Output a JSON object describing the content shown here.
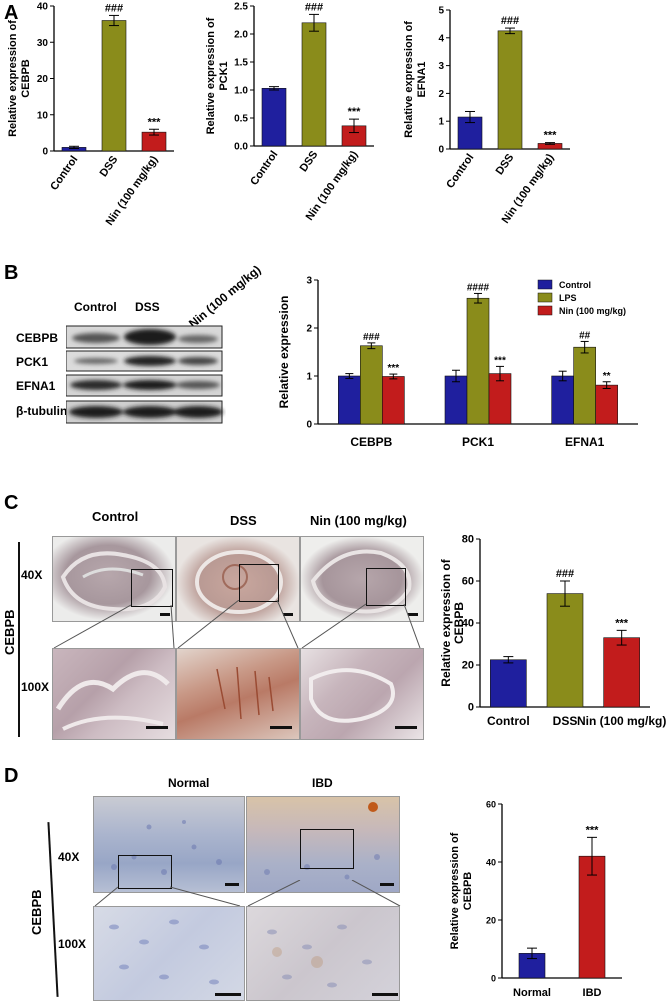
{
  "panels": {
    "A": "A",
    "B": "B",
    "C": "C",
    "D": "D"
  },
  "blot": {
    "lanes": [
      "Control",
      "DSS",
      "Nin (100 mg/kg)"
    ],
    "proteins": [
      "CEBPB",
      "PCK1",
      "EFNA1",
      "β-tubulin"
    ]
  },
  "micro_C": {
    "columns": [
      "Control",
      "DSS",
      "Nin (100 mg/kg)"
    ],
    "mag_low": "40X",
    "mag_high": "100X",
    "stain": "CEBPB"
  },
  "micro_D": {
    "columns": [
      "Normal",
      "IBD"
    ],
    "mag_low": "40X",
    "mag_high": "100X",
    "stain": "CEBPB"
  },
  "colors": {
    "control": "#1f1f9e",
    "dss": "#8a8c1b",
    "nin": "#c21c1c",
    "ibd": "#c21c1c"
  },
  "chart_data": [
    {
      "id": "A1",
      "type": "bar",
      "categories": [
        "Control",
        "DSS",
        "Nin (100 mg/kg)"
      ],
      "values": [
        1.0,
        36.0,
        5.2
      ],
      "errors": [
        0.3,
        1.4,
        0.8
      ],
      "annotations": [
        "",
        "###",
        "***"
      ],
      "ylabel": "Relative expression  of CEBPB",
      "ylim": [
        0,
        40
      ],
      "yticks": [
        0,
        10,
        20,
        30,
        40
      ]
    },
    {
      "id": "A2",
      "type": "bar",
      "categories": [
        "Control",
        "DSS",
        "Nin (100 mg/kg)"
      ],
      "values": [
        1.03,
        2.2,
        0.36
      ],
      "errors": [
        0.03,
        0.15,
        0.12
      ],
      "annotations": [
        "",
        "###",
        "***"
      ],
      "ylabel": "Relative expression of PCK1",
      "ylim": [
        0,
        2.5
      ],
      "yticks": [
        0.0,
        0.5,
        1.0,
        1.5,
        2.0,
        2.5
      ]
    },
    {
      "id": "A3",
      "type": "bar",
      "categories": [
        "Control",
        "DSS",
        "Nin (100 mg/kg)"
      ],
      "values": [
        1.15,
        4.25,
        0.2
      ],
      "errors": [
        0.2,
        0.1,
        0.03
      ],
      "annotations": [
        "",
        "###",
        "***"
      ],
      "ylabel": "Relative expression of EFNA1",
      "ylim": [
        0,
        5
      ],
      "yticks": [
        0,
        1,
        2,
        3,
        4,
        5
      ]
    },
    {
      "id": "B",
      "type": "bar",
      "categories": [
        "CEBPB",
        "PCK1",
        "EFNA1"
      ],
      "series": [
        {
          "name": "Control",
          "values": [
            1.0,
            1.0,
            1.0
          ],
          "errors": [
            0.05,
            0.12,
            0.1
          ],
          "annotations": [
            "",
            "",
            ""
          ]
        },
        {
          "name": "LPS",
          "values": [
            1.63,
            2.62,
            1.6
          ],
          "errors": [
            0.06,
            0.1,
            0.12
          ],
          "annotations": [
            "###",
            "####",
            "##"
          ]
        },
        {
          "name": "Nin (100 mg/kg)",
          "values": [
            0.99,
            1.05,
            0.81
          ],
          "errors": [
            0.05,
            0.15,
            0.07
          ],
          "annotations": [
            "***",
            "***",
            "**"
          ]
        }
      ],
      "ylabel": "Relative expression",
      "ylim": [
        0,
        3
      ],
      "yticks": [
        0,
        1,
        2,
        3
      ],
      "legend": "top-right"
    },
    {
      "id": "C",
      "type": "bar",
      "categories": [
        "Control",
        "DSS",
        "Nin (100 mg/kg)"
      ],
      "values": [
        22.5,
        54,
        33
      ],
      "errors": [
        1.5,
        6,
        3.5
      ],
      "annotations": [
        "",
        "###",
        "***"
      ],
      "ylabel": "Relative expression  of CEBPB",
      "ylim": [
        0,
        80
      ],
      "yticks": [
        0,
        20,
        40,
        60,
        80
      ]
    },
    {
      "id": "D",
      "type": "bar",
      "categories": [
        "Normal",
        "IBD"
      ],
      "values": [
        8.5,
        42
      ],
      "errors": [
        1.8,
        6.5
      ],
      "annotations": [
        "",
        "***"
      ],
      "ylabel": "Relative expression  of CEBPB",
      "ylim": [
        0,
        60
      ],
      "yticks": [
        0,
        20,
        40,
        60
      ]
    }
  ]
}
